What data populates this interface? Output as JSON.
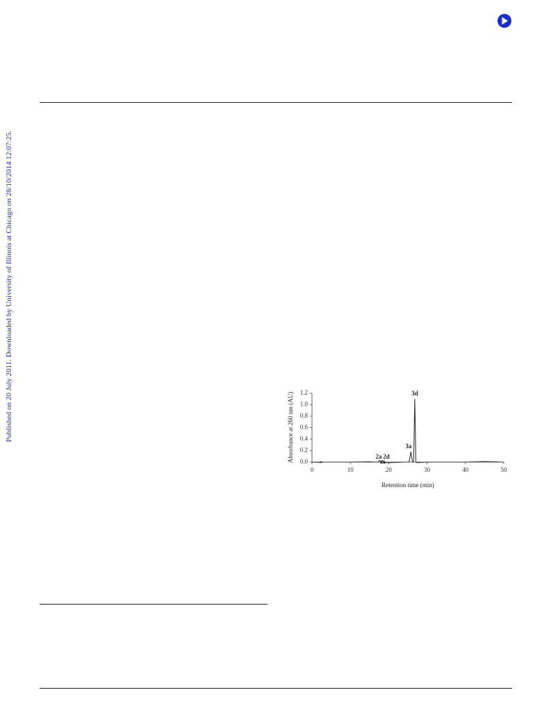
{
  "sidebar": {
    "text": "Published on 20 July 2011. Downloaded by University of Illinois at Chicago on 28/10/2014 12:07:25."
  },
  "chart_data": {
    "type": "line",
    "xlabel": "Retention time (min)",
    "ylabel": "Absorbance at 260 nm (AU)",
    "x": [
      0,
      2,
      2.3,
      2.6,
      5,
      10,
      15,
      16.5,
      17.2,
      17.6,
      18.0,
      18.4,
      18.8,
      20,
      22,
      24,
      25.3,
      25.8,
      26.2,
      26.5,
      26.8,
      27.1,
      27.5,
      30,
      35,
      40,
      45,
      50
    ],
    "series": [
      {
        "color": "#333333",
        "values": [
          0.0,
          -0.005,
          -0.01,
          0.0,
          0.0,
          0.0,
          0.005,
          0.0,
          0.0,
          0.03,
          0.0,
          0.03,
          -0.005,
          -0.01,
          -0.005,
          0.0,
          0.0,
          0.18,
          0.0,
          0.0,
          1.1,
          0.0,
          -0.01,
          0.0,
          0.0,
          0.0,
          0.01,
          0.0
        ]
      }
    ],
    "annotations": [
      "2a",
      "2d",
      "3a",
      "3d"
    ],
    "xlim": [
      0,
      50
    ],
    "xticks": [
      0,
      10,
      20,
      30,
      40,
      50
    ],
    "ylim": [
      0,
      1.2
    ],
    "yticks": [
      {
        "value": 0,
        "label": "0.0"
      },
      0.2,
      0.4,
      0.6,
      0.8,
      {
        "value": 1,
        "label": "1.0"
      },
      1.2
    ],
    "grid": false
  }
}
